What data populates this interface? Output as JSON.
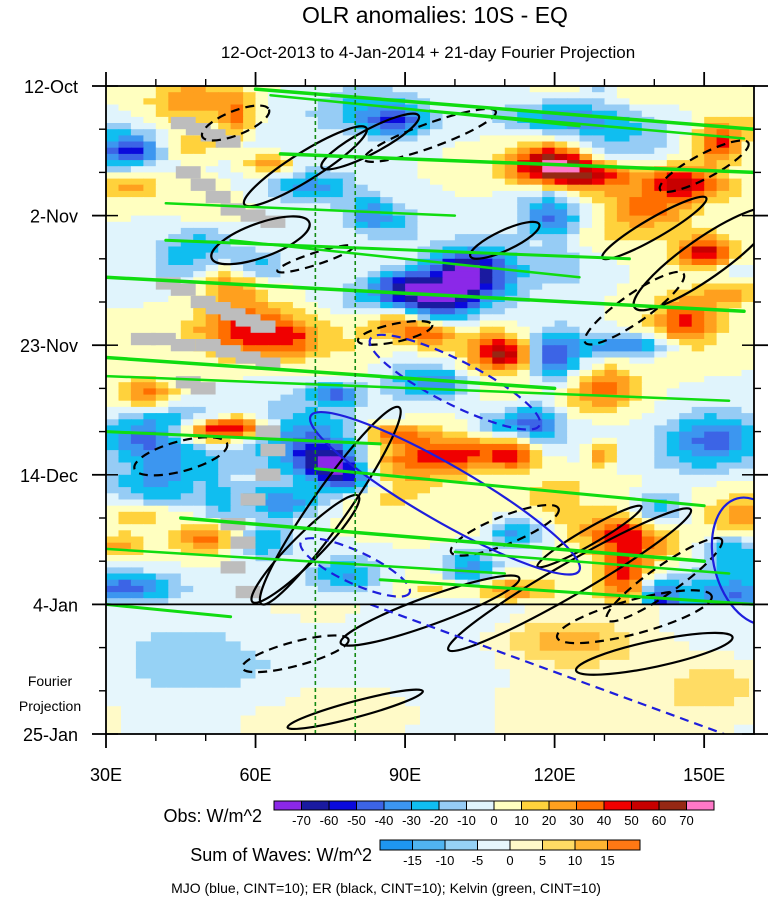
{
  "chart_data": {
    "type": "heatmap",
    "title": "OLR anomalies: 10S - EQ",
    "subtitle": "12-Oct-2013 to 4-Jan-2014 + 21-day Fourier Projection",
    "x_axis": {
      "range": [
        30,
        160
      ],
      "ticks": [
        30,
        60,
        90,
        120,
        150
      ],
      "tick_labels": [
        "30E",
        "60E",
        "90E",
        "120E",
        "150E"
      ],
      "minor_ticks": [
        40,
        50,
        70,
        80,
        100,
        110,
        130,
        140
      ]
    },
    "y_axis": {
      "range_days": [
        0,
        105
      ],
      "ticks": [
        0,
        21,
        42,
        63,
        84,
        105
      ],
      "tick_labels": [
        "12-Oct",
        "2-Nov",
        "23-Nov",
        "14-Dec",
        "4-Jan",
        "25-Jan"
      ],
      "minor_ticks": [
        7,
        14,
        28,
        35,
        49,
        56,
        70,
        77,
        91,
        98
      ],
      "inverted": true
    },
    "projection_boundary_day": 84,
    "projection_label": [
      "Fourier",
      "Projection"
    ],
    "reference_longitudes": [
      72,
      80
    ],
    "obs_colorbar": {
      "label": "Obs: W/m^2",
      "levels": [
        -70,
        -60,
        -50,
        -40,
        -30,
        -20,
        -10,
        0,
        10,
        20,
        30,
        40,
        50,
        60,
        70
      ],
      "level_labels": [
        "-70",
        "-60",
        "-50",
        "-40",
        "-30",
        "-20",
        "-10",
        "0",
        "10",
        "20",
        "30",
        "40",
        "50",
        "60",
        "70"
      ],
      "colors": [
        "#8B28E8",
        "#1A1AA0",
        "#0A0ADC",
        "#3C64E6",
        "#3C96F0",
        "#10BEF0",
        "#96CCF5",
        "#E0F4FC",
        "#FFFFC0",
        "#FFD23C",
        "#FFA01E",
        "#FF6E00",
        "#F00000",
        "#C80000",
        "#962814",
        "#FF78C8"
      ]
    },
    "waves_colorbar": {
      "label": "Sum of Waves: W/m^2",
      "levels": [
        -15,
        -10,
        -5,
        0,
        5,
        10,
        15
      ],
      "level_labels": [
        "-15",
        "-10",
        "-5",
        "0",
        "5",
        "10",
        "15"
      ],
      "colors": [
        "#1E96F0",
        "#50B4F0",
        "#96D2F5",
        "#E6F6FC",
        "#FFFAC8",
        "#FFDC64",
        "#FFB432",
        "#FF7814"
      ]
    },
    "contour_legend": "MJO (blue, CINT=10); ER (black, CINT=10); Kelvin (green, CINT=10)",
    "series": [
      {
        "name": "MJO",
        "color": "#1E1EDC"
      },
      {
        "name": "ER",
        "color": "#000000"
      },
      {
        "name": "Kelvin",
        "color": "#10DC10"
      }
    ]
  }
}
